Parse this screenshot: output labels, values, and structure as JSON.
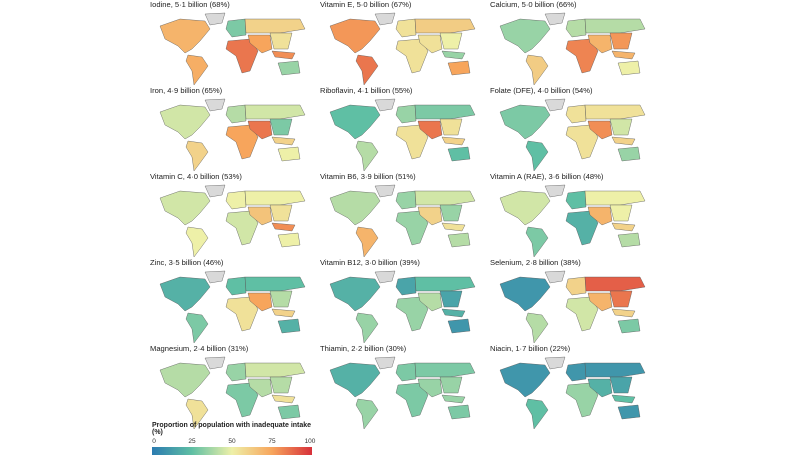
{
  "color_scale": {
    "stops": [
      0,
      25,
      50,
      75,
      100
    ],
    "colors": [
      "#2b7bb0",
      "#5fbfa4",
      "#eef0a8",
      "#f7a55c",
      "#d7303a"
    ],
    "no_data": "#d9d9d9"
  },
  "legend": {
    "title": "Proportion of population with inadequate intake (%)",
    "ticks": [
      "0",
      "25",
      "50",
      "75",
      "100"
    ]
  },
  "regions": [
    "north_america",
    "south_america",
    "europe",
    "russia",
    "africa",
    "south_asia_middle_east",
    "east_asia",
    "southeast_asia",
    "australia"
  ],
  "panels": [
    {
      "title": "Iodine, 5·1 billion (68%)",
      "values": [
        70,
        72,
        30,
        60,
        85,
        75,
        55,
        80,
        35
      ]
    },
    {
      "title": "Vitamin E, 5·0 billion (67%)",
      "values": [
        78,
        85,
        55,
        62,
        55,
        55,
        50,
        35,
        75
      ]
    },
    {
      "title": "Calcium, 5·0 billion (66%)",
      "values": [
        35,
        62,
        40,
        40,
        82,
        70,
        78,
        70,
        50
      ]
    },
    {
      "title": "Iron, 4·9 billion (65%)",
      "values": [
        45,
        60,
        40,
        45,
        75,
        85,
        30,
        60,
        50
      ]
    },
    {
      "title": "Riboflavin, 4·1 billion (55%)",
      "values": [
        25,
        40,
        35,
        30,
        55,
        85,
        55,
        60,
        25
      ]
    },
    {
      "title": "Folate (DFE), 4·0 billion (54%)",
      "values": [
        30,
        25,
        55,
        55,
        55,
        80,
        45,
        60,
        35
      ]
    },
    {
      "title": "Vitamin C, 4·0 billion (53%)",
      "values": [
        45,
        50,
        50,
        50,
        45,
        65,
        55,
        80,
        50
      ]
    },
    {
      "title": "Vitamin B6, 3·9 billion (51%)",
      "values": [
        40,
        70,
        35,
        45,
        35,
        60,
        35,
        55,
        40
      ]
    },
    {
      "title": "Vitamin A (RAE), 3·6 billion (48%)",
      "values": [
        45,
        30,
        25,
        50,
        20,
        70,
        50,
        60,
        40
      ]
    },
    {
      "title": "Zinc, 3·5 billion (46%)",
      "values": [
        20,
        30,
        25,
        25,
        55,
        75,
        40,
        60,
        20
      ]
    },
    {
      "title": "Vitamin B12, 3·0 billion (39%)",
      "values": [
        20,
        35,
        15,
        25,
        35,
        40,
        15,
        20,
        10
      ]
    },
    {
      "title": "Selenium, 2·8 billion (38%)",
      "values": [
        10,
        40,
        60,
        90,
        45,
        70,
        85,
        60,
        30
      ]
    },
    {
      "title": "Magnesium, 2·4 billion (31%)",
      "values": [
        40,
        55,
        35,
        45,
        30,
        40,
        40,
        55,
        30
      ]
    },
    {
      "title": "Thiamin, 2·2 billion (30%)",
      "values": [
        20,
        35,
        30,
        30,
        30,
        35,
        35,
        35,
        30
      ]
    },
    {
      "title": "Niacin, 1·7 billion (22%)",
      "values": [
        10,
        25,
        10,
        10,
        35,
        20,
        15,
        25,
        10
      ]
    }
  ]
}
